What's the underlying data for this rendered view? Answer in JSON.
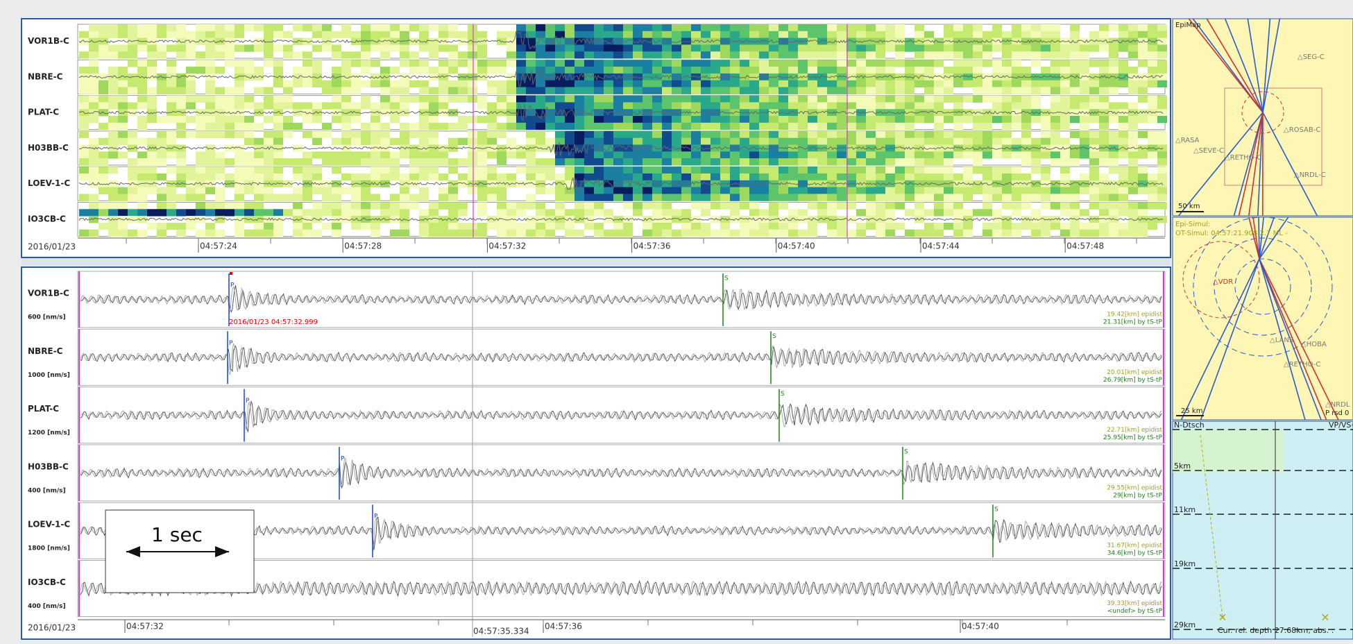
{
  "spectrogram_panel": {
    "stations": [
      "VOR1B-C",
      "NBRE-C",
      "PLAT-C",
      "H03BB-C",
      "LOEV-1-C",
      "IO3CB-C"
    ],
    "date": "2016/01/23",
    "time_ticks": [
      "04:57:24",
      "04:57:28",
      "04:57:32",
      "04:57:36",
      "04:57:40",
      "04:57:44",
      "04:57:48"
    ]
  },
  "waveform_panel": {
    "traces": [
      {
        "station": "VOR1B-C",
        "scale": "600 [nm/s]",
        "p_label": "P",
        "s_label": "S",
        "epidist": "19.42[km] epidist",
        "ts_tp": "21.31[km] by tS-tP"
      },
      {
        "station": "NBRE-C",
        "scale": "1000 [nm/s]",
        "p_label": "P",
        "s_label": "S",
        "epidist": "20.01[km] epidist",
        "ts_tp": "26.79[km] by tS-tP"
      },
      {
        "station": "PLAT-C",
        "scale": "1200 [nm/s]",
        "p_label": "P",
        "s_label": "S",
        "epidist": "22.71[km] epidist",
        "ts_tp": "25.95[km] by tS-tP"
      },
      {
        "station": "H03BB-C",
        "scale": "400 [nm/s]",
        "p_label": "P",
        "s_label": "S",
        "epidist": "29.55[km] epidist",
        "ts_tp": "29[km] by tS-tP"
      },
      {
        "station": "LOEV-1-C",
        "scale": "1800 [nm/s]",
        "p_label": "P",
        "s_label": "S",
        "epidist": "31.67[km] epidist",
        "ts_tp": "34.6[km] by tS-tP"
      },
      {
        "station": "IO3CB-C",
        "scale": "400 [nm/s]",
        "epidist": "39.33[km] epidist",
        "ts_tp": "<undef> by tS-tP"
      }
    ],
    "pick_time": "2016/01/23 04:57:32.999",
    "date": "2016/01/23",
    "time_ticks": [
      "04:57:32",
      "04:57:36",
      "04:57:40"
    ],
    "cursor_time": "04:57:35.334",
    "scale_bar": "1 sec"
  },
  "epimap": {
    "title": "EpiMap",
    "scale": "50 km",
    "stations": [
      "△SEG-C",
      "△RASA",
      "△SEVE-C",
      "△ROSAB-C",
      "△RETHO-C",
      "△NRDL-C"
    ]
  },
  "simulation_map": {
    "epi_simul": "Epi-Simul:",
    "ot_simul": "OT-Simul: 04:57:21.908 2.7 ML -",
    "scale": "25 km",
    "stations": [
      "△VDR",
      "△LANS",
      "△HOBA",
      "△RETHO-C",
      "△NRDL"
    ],
    "residual": "P rsd 0"
  },
  "depth_panel": {
    "model": "N-Dtsch",
    "vpvs": "VP/VS=",
    "depths": [
      "5km",
      "11km",
      "19km",
      "29km"
    ],
    "status": "Cur. rel. depth 27.68km, abs. :"
  }
}
